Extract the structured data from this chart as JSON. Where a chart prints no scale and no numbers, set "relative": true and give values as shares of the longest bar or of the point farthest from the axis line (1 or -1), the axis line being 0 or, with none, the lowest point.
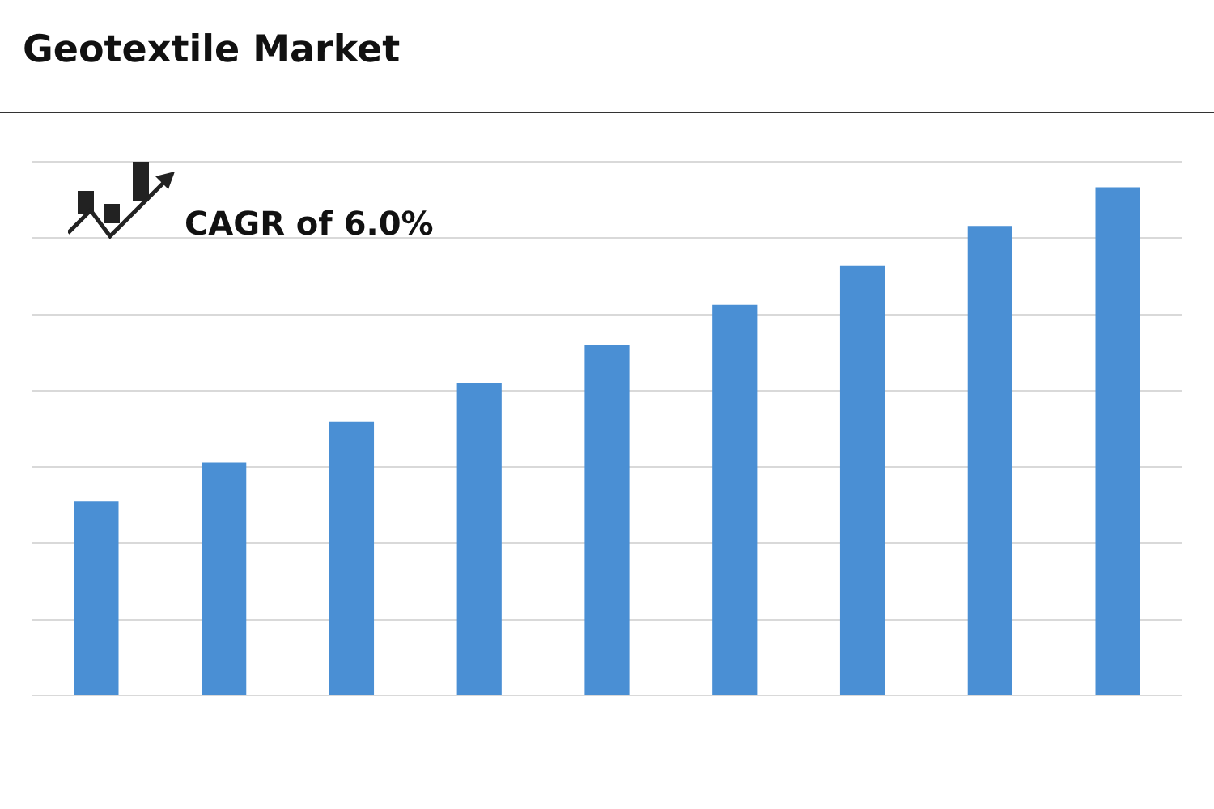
{
  "chart_data": {
    "type": "bar",
    "title": "Geotextile Market",
    "categories": [
      null,
      null,
      null,
      null,
      null,
      null,
      null,
      null,
      null
    ],
    "values": [
      0.383,
      0.459,
      0.538,
      0.614,
      0.69,
      0.769,
      0.845,
      0.924,
      1
    ],
    "color": "#4a8fd4",
    "relative": true,
    "grid": "y",
    "legend": false,
    "annotations": [
      "CAGR of 6.0%"
    ]
  }
}
